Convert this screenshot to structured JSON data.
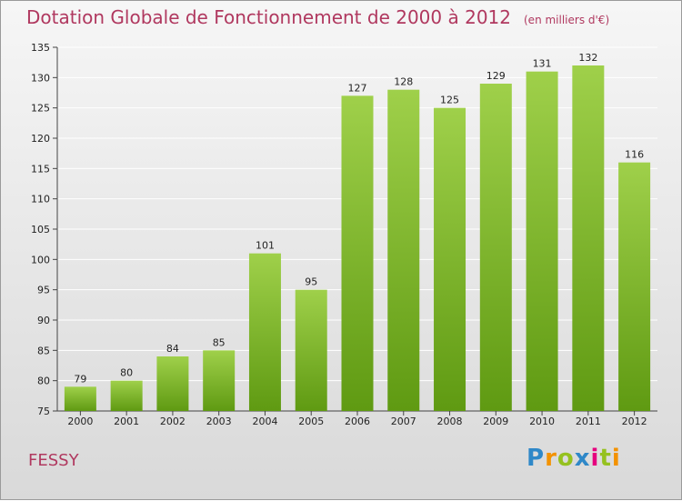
{
  "title": "Dotation Globale de Fonctionnement de 2000 à 2012",
  "unit": "(en milliers d'€)",
  "place": "FESSY",
  "logo": {
    "text": "Proxiti",
    "letters": [
      {
        "ch": "P",
        "color": "#2f88c8"
      },
      {
        "ch": "r",
        "color": "#f39200"
      },
      {
        "ch": "o",
        "color": "#95c11f"
      },
      {
        "ch": "x",
        "color": "#2f88c8"
      },
      {
        "ch": "i",
        "color": "#e6007e"
      },
      {
        "ch": "t",
        "color": "#95c11f"
      },
      {
        "ch": "i",
        "color": "#f39200"
      }
    ]
  },
  "colors": {
    "bar_top": "#9fd04a",
    "bar_bottom": "#5f9a12",
    "title": "#b0385f"
  },
  "chart_data": {
    "type": "bar",
    "title": "Dotation Globale de Fonctionnement de 2000 à 2012",
    "categories": [
      "2000",
      "2001",
      "2002",
      "2003",
      "2004",
      "2005",
      "2006",
      "2007",
      "2008",
      "2009",
      "2010",
      "2011",
      "2012"
    ],
    "values": [
      79,
      80,
      84,
      85,
      101,
      95,
      127,
      128,
      125,
      129,
      131,
      132,
      116
    ],
    "ylim": [
      75,
      135
    ],
    "yticks": [
      75,
      80,
      85,
      90,
      95,
      100,
      105,
      110,
      115,
      120,
      125,
      130,
      135
    ],
    "grid": true
  }
}
